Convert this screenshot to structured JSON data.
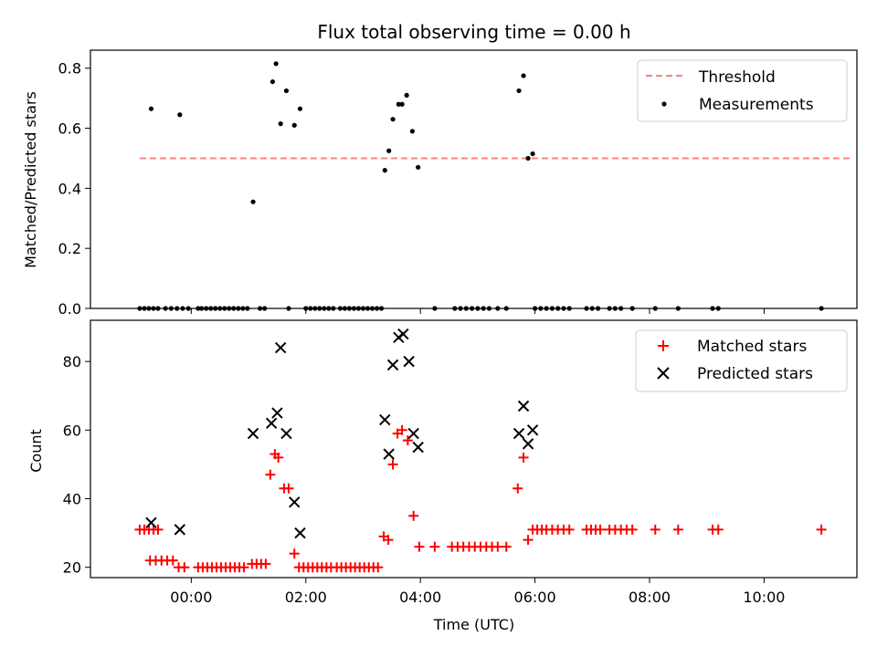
{
  "chart_data": [
    {
      "type": "scatter",
      "title": "Flux total observing time = 0.00 h",
      "xlabel": "",
      "ylabel": "Matched/Predicted stars",
      "ylim": [
        0,
        0.86
      ],
      "yticks": [
        "0.0",
        "0.2",
        "0.4",
        "0.6",
        "0.8"
      ],
      "ytick_values": [
        0,
        0.2,
        0.4,
        0.6,
        0.8
      ],
      "legend_position": "top-right",
      "threshold": {
        "name": "Threshold",
        "value": 0.5,
        "x_range": [
          -0.9,
          11.5
        ],
        "color": "#ff8080"
      },
      "series": [
        {
          "name": "Measurements",
          "color": "#000000",
          "x": [
            -0.9,
            -0.82,
            -0.74,
            -0.66,
            -0.58,
            -0.45,
            -0.35,
            -0.25,
            -0.15,
            -0.05,
            0.12,
            0.18,
            0.26,
            0.34,
            0.42,
            0.5,
            0.58,
            0.66,
            0.74,
            0.82,
            0.9,
            0.98,
            1.2,
            1.28,
            1.7,
            2.0,
            2.08,
            2.16,
            2.24,
            2.32,
            2.4,
            2.48,
            2.6,
            2.68,
            2.76,
            2.84,
            2.92,
            3.0,
            3.08,
            3.16,
            3.24,
            3.32,
            4.25,
            4.6,
            4.7,
            4.8,
            4.9,
            5.0,
            5.1,
            5.2,
            5.35,
            5.5,
            6.0,
            6.1,
            6.2,
            6.3,
            6.4,
            6.5,
            6.6,
            6.9,
            7.0,
            7.1,
            7.3,
            7.4,
            7.5,
            7.7,
            8.1,
            8.5,
            9.1,
            9.2,
            11.0,
            -0.7,
            -0.2,
            1.08,
            1.42,
            1.48,
            1.56,
            1.66,
            1.8,
            1.9,
            3.38,
            3.45,
            3.52,
            3.62,
            3.68,
            3.76,
            3.86,
            3.96,
            5.72,
            5.8,
            5.88,
            5.96
          ],
          "y": [
            0,
            0,
            0,
            0,
            0,
            0,
            0,
            0,
            0,
            0,
            0,
            0,
            0,
            0,
            0,
            0,
            0,
            0,
            0,
            0,
            0,
            0,
            0,
            0,
            0,
            0,
            0,
            0,
            0,
            0,
            0,
            0,
            0,
            0,
            0,
            0,
            0,
            0,
            0,
            0,
            0,
            0,
            0,
            0,
            0,
            0,
            0,
            0,
            0,
            0,
            0,
            0,
            0,
            0,
            0,
            0,
            0,
            0,
            0,
            0,
            0,
            0,
            0,
            0,
            0,
            0,
            0,
            0,
            0,
            0,
            0,
            0.665,
            0.645,
            0.355,
            0.755,
            0.815,
            0.615,
            0.725,
            0.61,
            0.665,
            0.46,
            0.525,
            0.63,
            0.68,
            0.68,
            0.71,
            0.59,
            0.47,
            0.725,
            0.775,
            0.5,
            0.515
          ]
        }
      ]
    },
    {
      "type": "scatter",
      "title": "",
      "xlabel": "Time (UTC)",
      "ylabel": "Count",
      "ylim": [
        17,
        92
      ],
      "yticks": [
        "20",
        "40",
        "60",
        "80"
      ],
      "ytick_values": [
        20,
        40,
        60,
        80
      ],
      "xlim": [
        -1.76,
        11.62
      ],
      "xticks": [
        "00:00",
        "02:00",
        "04:00",
        "06:00",
        "08:00",
        "10:00"
      ],
      "xtick_values": [
        0,
        2,
        4,
        6,
        8,
        10
      ],
      "legend_position": "top-right",
      "series": [
        {
          "name": "Matched stars",
          "marker": "+",
          "color": "#ff0000",
          "x": [
            -0.9,
            -0.82,
            -0.74,
            -0.66,
            -0.58,
            -0.72,
            -0.62,
            -0.52,
            -0.42,
            -0.32,
            -0.22,
            -0.12,
            0.12,
            0.2,
            0.28,
            0.36,
            0.44,
            0.52,
            0.6,
            0.68,
            0.76,
            0.84,
            0.92,
            1.06,
            1.14,
            1.22,
            1.3,
            1.38,
            1.46,
            1.52,
            1.62,
            1.7,
            1.8,
            1.88,
            1.96,
            2.04,
            2.12,
            2.2,
            2.28,
            2.36,
            2.44,
            2.54,
            2.62,
            2.7,
            2.78,
            2.86,
            2.94,
            3.02,
            3.1,
            3.18,
            3.26,
            3.36,
            3.44,
            3.52,
            3.6,
            3.68,
            3.78,
            3.88,
            3.98,
            4.25,
            4.55,
            4.65,
            4.75,
            4.85,
            4.95,
            5.05,
            5.15,
            5.25,
            5.35,
            5.5,
            5.7,
            5.8,
            5.88,
            5.96,
            6.04,
            6.12,
            6.2,
            6.3,
            6.4,
            6.5,
            6.6,
            6.9,
            6.98,
            7.06,
            7.14,
            7.3,
            7.4,
            7.5,
            7.6,
            7.7,
            8.1,
            8.5,
            9.1,
            9.2,
            11.0
          ],
          "y": [
            31,
            31,
            31,
            31,
            31,
            22,
            22,
            22,
            22,
            22,
            20,
            20,
            20,
            20,
            20,
            20,
            20,
            20,
            20,
            20,
            20,
            20,
            20,
            21,
            21,
            21,
            21,
            47,
            53,
            52,
            43,
            43,
            24,
            20,
            20,
            20,
            20,
            20,
            20,
            20,
            20,
            20,
            20,
            20,
            20,
            20,
            20,
            20,
            20,
            20,
            20,
            29,
            28,
            50,
            59,
            60,
            57,
            35,
            26,
            26,
            26,
            26,
            26,
            26,
            26,
            26,
            26,
            26,
            26,
            26,
            43,
            52,
            28,
            31,
            31,
            31,
            31,
            31,
            31,
            31,
            31,
            31,
            31,
            31,
            31,
            31,
            31,
            31,
            31,
            31,
            31,
            31,
            31,
            31,
            31
          ]
        },
        {
          "name": "Predicted stars",
          "marker": "x",
          "color": "#000000",
          "x": [
            -0.7,
            -0.2,
            1.08,
            1.4,
            1.5,
            1.56,
            1.66,
            1.8,
            1.9,
            3.38,
            3.45,
            3.52,
            3.62,
            3.7,
            3.8,
            3.88,
            3.96,
            5.72,
            5.8,
            5.88,
            5.96
          ],
          "y": [
            33,
            31,
            59,
            62,
            65,
            84,
            59,
            39,
            30,
            63,
            53,
            79,
            87,
            88,
            80,
            59,
            55,
            59,
            67,
            56,
            60
          ]
        }
      ]
    }
  ]
}
